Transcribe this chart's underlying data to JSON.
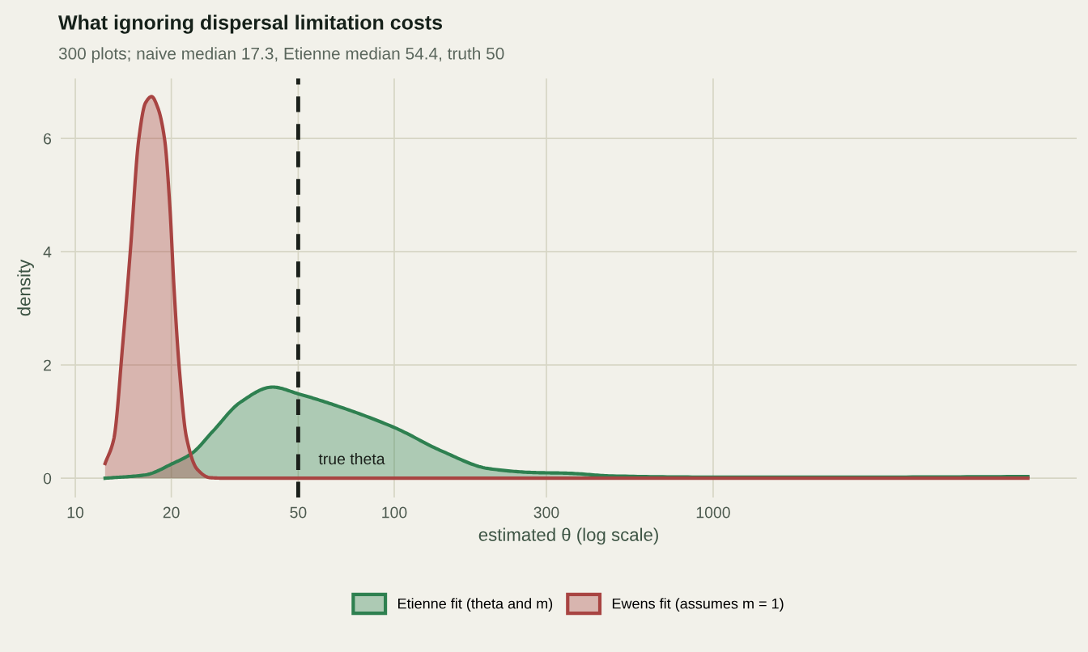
{
  "chart_data": {
    "type": "area",
    "title": "What ignoring dispersal limitation costs",
    "subtitle": "300 plots; naive median 17.3, Etienne median 54.4, truth 50",
    "xlabel": "estimated θ (log scale)",
    "ylabel": "density",
    "log": "x",
    "xlim": [
      9.0,
      13800
    ],
    "ylim": [
      -0.34,
      7.06
    ],
    "xticks": [
      10,
      20,
      50,
      100,
      300,
      1000
    ],
    "yticks": [
      0,
      2,
      4,
      6
    ],
    "grid": true,
    "legend": "bottom",
    "series": [
      {
        "name": "Etienne fit (theta and m)",
        "color": "#2e8050",
        "x": [
          12.4,
          16.6,
          20.2,
          23.2,
          27.0,
          32.9,
          41.5,
          50.1,
          64.4,
          100.6,
          141,
          198,
          277,
          346,
          484,
          1000,
          3000,
          9700
        ],
        "values": [
          0,
          0.06,
          0.26,
          0.44,
          0.83,
          1.34,
          1.61,
          1.49,
          1.3,
          0.89,
          0.48,
          0.17,
          0.1,
          0.09,
          0.04,
          0.02,
          0.02,
          0.03
        ]
      },
      {
        "name": "Ewens fit (assumes m = 1)",
        "color": "#a84442",
        "x": [
          12.4,
          13.2,
          14.1,
          14.9,
          15.8,
          16.6,
          17.35,
          18.15,
          19.07,
          19.8,
          20.4,
          21.2,
          22.3,
          24.1,
          26.5,
          30,
          100,
          1000,
          9700
        ],
        "values": [
          0.26,
          0.69,
          2.4,
          4.06,
          5.97,
          6.63,
          6.74,
          6.54,
          5.97,
          4.78,
          3.35,
          1.92,
          0.73,
          0.16,
          0.01,
          0,
          0,
          0,
          0
        ]
      }
    ],
    "ref_lines": [
      {
        "axis": "x",
        "value": 50,
        "color": "#1a1f1a",
        "line_style": "dashed",
        "label": "true theta"
      }
    ]
  }
}
